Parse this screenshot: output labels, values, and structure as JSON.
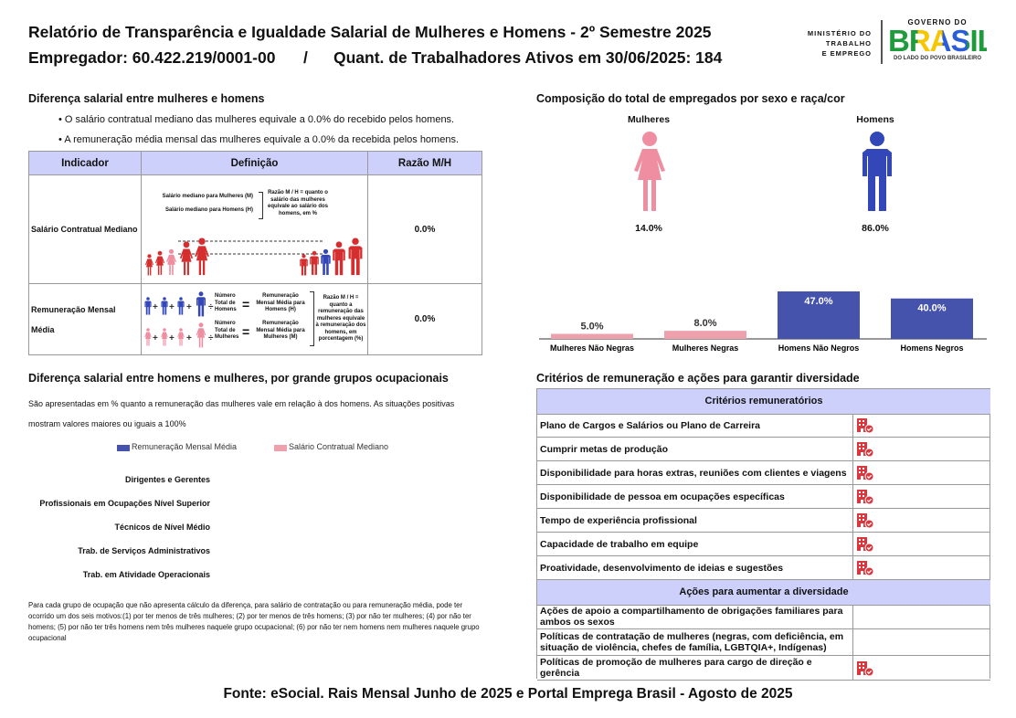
{
  "header": {
    "title": "Relatório de Transparência e Igualdade Salarial de Mulheres e Homens - 2º Semestre 2025",
    "employer": "Empregador: 60.422.219/0001-00",
    "separator": "/",
    "active_workers": "Quant. de Trabalhadores Ativos em 30/06/2025: 184"
  },
  "logos": {
    "ministry": [
      "MINISTÉRIO DO",
      "TRABALHO",
      "E EMPREGO"
    ],
    "government": "GOVERNO DO",
    "brasil": "BRASIL",
    "slogan": "DO LADO DO POVO BRASILEIRO"
  },
  "salary_gap": {
    "title": "Diferença salarial entre mulheres e homens",
    "bullets": [
      "O salário contratual mediano das mulheres equivale a 0.0% do recebido pelos homens.",
      "A remuneração média mensal das mulheres equivale a 0.0% da recebida pelos homens."
    ],
    "table": {
      "headers": [
        "Indicador",
        "Definição",
        "Razão M/H"
      ],
      "rows": [
        {
          "indicator": "Salário Contratual Mediano",
          "ratio": "0.0%"
        },
        {
          "indicator": "Remuneração Mensal Média",
          "ratio": "0.0%"
        }
      ]
    },
    "median_diagram": {
      "women": "Salário mediano para Mulheres (M)",
      "men": "Salário mediano para Homens (H)",
      "ratio": "Razão M / H = quanto o salário das mulheres equivale ao salário dos homens, em %"
    },
    "average_diagram": {
      "men_count": "Número Total de Homens",
      "men_pay": "Remuneração Mensal Média para Homens (H)",
      "women_count": "Número Total de Mulheres",
      "women_pay": "Remuneração Mensal Média para Mulheres (M)",
      "ratio": "Razão M / H = quanto a remuneração das mulheres equivale à remuneração dos homens, em porcentagem (%)"
    }
  },
  "composition": {
    "title": "Composição do total de empregados por sexo e raça/cor",
    "women": {
      "label": "Mulheres",
      "share": "14.0%",
      "color": "#ef8ea0"
    },
    "men": {
      "label": "Homens",
      "share": "86.0%",
      "color": "#3447b8"
    },
    "bars": {
      "categories": [
        "Mulheres Não Negras",
        "Mulheres Negras",
        "Homens Não Negros",
        "Homens Negros"
      ],
      "values": [
        5.0,
        8.0,
        47.0,
        40.0
      ],
      "value_labels": [
        "5.0%",
        "8.0%",
        "47.0%",
        "40.0%"
      ],
      "colors": [
        "#eea0ad",
        "#eea0ad",
        "#4653ad",
        "#4653ad"
      ]
    }
  },
  "occupational": {
    "title": "Diferença salarial entre homens e mulheres, por grande grupos ocupacionais",
    "description": "São apresentadas em % quanto a remuneração das mulheres vale em relação à dos homens. As situações positivas mostram valores maiores ou iguais a 100%",
    "legend": [
      {
        "name": "Remuneração Mensal Média",
        "color": "#4653ad"
      },
      {
        "name": "Salário Contratual Mediano",
        "color": "#eea0ad"
      }
    ],
    "groups": [
      "Dirigentes e Gerentes",
      "Profissionais em Ocupações Nível Superior",
      "Técnicos de Nível Médio",
      "Trab. de Serviços Administrativos",
      "Trab. em Atividade Operacionais"
    ],
    "footnote": "Para cada grupo de ocupação que não apresenta cálculo da diferença, para salário de contratação ou para remuneração média, pode ter ocorrido um dos seis motivos:(1) por ter menos de três mulheres; (2) por ter menos de três homens; (3) por não ter mulheres; (4) por não ter homens; (5) por não ter três homens nem três mulheres naquele grupo ocupacional; (6) por não ter nem homens nem mulheres naquele grupo ocupacional"
  },
  "diversity": {
    "title": "Critérios de remuneração e ações para garantir diversidade",
    "criteria_header": "Critérios remuneratórios",
    "criteria": [
      {
        "label": "Plano de Cargos e Salários ou Plano de Carreira",
        "adopted": true
      },
      {
        "label": "Cumprir metas de produção",
        "adopted": true
      },
      {
        "label": "Disponibilidade para horas extras, reuniões com clientes e viagens",
        "adopted": true
      },
      {
        "label": "Disponibilidade de pessoa em ocupações específicas",
        "adopted": true
      },
      {
        "label": "Tempo de experiência profissional",
        "adopted": true
      },
      {
        "label": "Capacidade de trabalho em equipe",
        "adopted": true
      },
      {
        "label": "Proatividade, desenvolvimento de ideias e sugestões",
        "adopted": true
      }
    ],
    "actions_header": "Ações para aumentar a diversidade",
    "actions": [
      {
        "label": "Ações de apoio a compartilhamento de obrigações familiares para ambos os sexos",
        "adopted": false
      },
      {
        "label": "Políticas de contratação de mulheres (negras, com deficiência, em situação de violência, chefes de família, LGBTQIA+, Indígenas)",
        "adopted": false
      },
      {
        "label": "Políticas de promoção de mulheres para cargo de direção e gerência",
        "adopted": true
      }
    ]
  },
  "footer": {
    "source": "Fonte: eSocial. Rais Mensal Junho de 2025 e Portal Emprega Brasil - Agosto de 2025"
  }
}
